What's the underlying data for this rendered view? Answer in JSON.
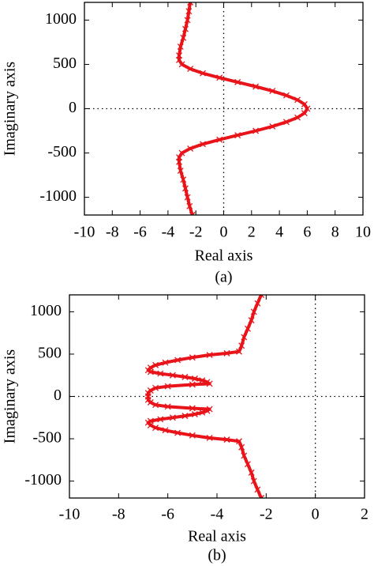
{
  "chart_data": [
    {
      "type": "scatter",
      "xlabel": "Real axis",
      "ylabel": "Imaginary axis",
      "caption": "(a)",
      "xlim": [
        -10,
        10
      ],
      "ylim": [
        -1200,
        1200
      ],
      "xticks": [
        -10,
        -8,
        -6,
        -4,
        -2,
        0,
        2,
        4,
        6,
        8,
        10
      ],
      "yticks": [
        -1000,
        -500,
        0,
        500,
        1000
      ],
      "zero_lines": true,
      "marker": "x",
      "series": [
        {
          "color": "#e8141a",
          "x": [
            -2.4,
            -2.5,
            -2.6,
            -2.75,
            -2.9,
            -3.1,
            -3.2,
            -3.2,
            -3.0,
            -2.4,
            -1.5,
            -0.3,
            1.0,
            2.3,
            3.5,
            4.5,
            5.3,
            5.8,
            6.0,
            5.8,
            5.3,
            4.5,
            3.5,
            2.3,
            1.0,
            -0.3,
            -1.5,
            -2.4,
            -3.0,
            -3.2,
            -3.2,
            -3.1,
            -2.9,
            -2.75,
            -2.6,
            -2.45,
            -2.25
          ],
          "y": [
            1200,
            1100,
            1000,
            900,
            800,
            700,
            600,
            550,
            500,
            450,
            400,
            350,
            300,
            250,
            200,
            150,
            100,
            50,
            0,
            -50,
            -100,
            -150,
            -200,
            -250,
            -300,
            -350,
            -400,
            -450,
            -500,
            -550,
            -600,
            -700,
            -800,
            -900,
            -1000,
            -1100,
            -1200
          ]
        }
      ]
    },
    {
      "type": "scatter",
      "xlabel": "Real axis",
      "ylabel": "Imaginary axis",
      "caption": "(b)",
      "xlim": [
        -10,
        2
      ],
      "ylim": [
        -1200,
        1200
      ],
      "xticks": [
        -10,
        -8,
        -6,
        -4,
        -2,
        0,
        2
      ],
      "yticks": [
        -1000,
        -500,
        0,
        500,
        1000
      ],
      "zero_lines": true,
      "marker": "x",
      "series": [
        {
          "color": "#e8141a",
          "x": [
            -2.2,
            -2.35,
            -2.5,
            -2.6,
            -2.75,
            -2.9,
            -3.0,
            -3.1,
            -3.6,
            -4.3,
            -5.0,
            -5.6,
            -6.1,
            -6.5,
            -6.7,
            -6.8,
            -6.7,
            -6.3,
            -5.8,
            -5.3,
            -4.9,
            -4.6,
            -4.4,
            -4.3,
            -5.0,
            -6.0,
            -6.5,
            -6.7,
            -6.8,
            -6.8,
            -6.8,
            -6.7,
            -6.5,
            -6.0,
            -5.0,
            -4.3,
            -4.4,
            -4.6,
            -4.9,
            -5.3,
            -5.8,
            -6.3,
            -6.7,
            -6.8,
            -6.7,
            -6.5,
            -6.1,
            -5.6,
            -5.0,
            -4.3,
            -3.6,
            -3.1,
            -3.0,
            -2.9,
            -2.75,
            -2.6,
            -2.5,
            -2.35,
            -2.2
          ],
          "y": [
            1200,
            1100,
            1000,
            900,
            800,
            700,
            600,
            530,
            510,
            490,
            460,
            430,
            400,
            370,
            340,
            310,
            290,
            270,
            250,
            230,
            210,
            190,
            170,
            150,
            140,
            120,
            100,
            70,
            40,
            0,
            -40,
            -70,
            -100,
            -120,
            -140,
            -150,
            -170,
            -190,
            -210,
            -230,
            -250,
            -270,
            -290,
            -310,
            -340,
            -370,
            -400,
            -430,
            -460,
            -490,
            -510,
            -530,
            -600,
            -700,
            -800,
            -900,
            -1000,
            -1100,
            -1200
          ]
        }
      ]
    }
  ]
}
